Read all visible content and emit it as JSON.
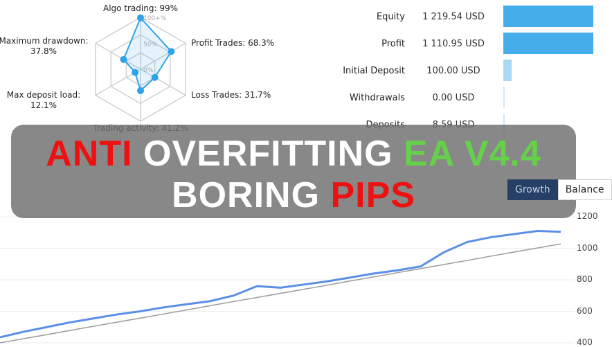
{
  "radar": {
    "rings": [
      "100+%",
      "50%",
      "0%"
    ],
    "axes": [
      {
        "label": "Algo trading: 99%",
        "value": 99
      },
      {
        "label": "Profit Trades: 68.3%",
        "value": 68.3
      },
      {
        "label": "Loss Trades: 31.7%",
        "value": 31.7
      },
      {
        "label": "Trading activity: 41.2%",
        "value": 41.2
      },
      {
        "label": "Max deposit load:",
        "label2": "12.1%",
        "value": 12.1
      },
      {
        "label": "Maximum drawdown:",
        "label2": "37.8%",
        "value": 37.8
      }
    ],
    "color": "#2ea3e8"
  },
  "stats": [
    {
      "name": "Equity",
      "value": "1 219.54 USD",
      "bar_color": "#45aeea"
    },
    {
      "name": "Profit",
      "value": "1 110.95 USD",
      "bar_color": "#45aeea"
    },
    {
      "name": "Initial Deposit",
      "value": "100.00 USD",
      "bar_color": "#a9d8f5"
    },
    {
      "name": "Withdrawals",
      "value": "0.00 USD",
      "bar_color": "#cfe8f8"
    },
    {
      "name": "Deposits",
      "value": "8.59 USD",
      "bar_color": "#cfe8f8"
    }
  ],
  "tabs": [
    {
      "label": "Growth",
      "active": true
    },
    {
      "label": "Balance",
      "active": false
    }
  ],
  "banner": {
    "line1": [
      {
        "text": "ANTI ",
        "color": "red"
      },
      {
        "text": "OVERFITTING ",
        "color": "white"
      },
      {
        "text": "EA V4.4",
        "color": "green"
      }
    ],
    "line2": [
      {
        "text": "BORING ",
        "color": "white"
      },
      {
        "text": "PIPS",
        "color": "red"
      }
    ]
  },
  "chart_data": {
    "type": "line",
    "yticks": [
      "1200",
      "1000",
      "800",
      "600",
      "400"
    ],
    "ylim": [
      400,
      1200
    ],
    "grid": true,
    "series": [
      {
        "color": "#5b8ee6",
        "values": [
          435,
          470,
          500,
          530,
          555,
          580,
          600,
          625,
          645,
          665,
          700,
          760,
          750,
          770,
          790,
          815,
          840,
          860,
          885,
          975,
          1040,
          1070,
          1090,
          1110,
          1105
        ]
      },
      {
        "color": "#a0a0a0",
        "values": [
          400,
          426,
          452,
          479,
          505,
          531,
          557,
          583,
          609,
          636,
          662,
          688,
          714,
          740,
          766,
          793,
          819,
          845,
          871,
          897,
          923,
          950,
          976,
          1002,
          1028
        ]
      }
    ]
  }
}
